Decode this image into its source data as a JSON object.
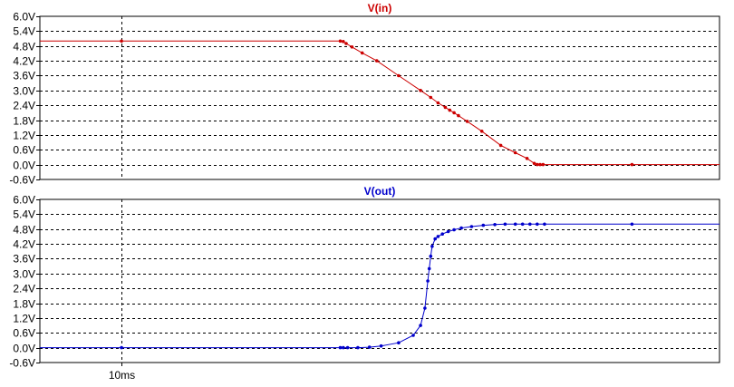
{
  "chart_data": [
    {
      "type": "line",
      "title": "V(in)",
      "color": "#cc0000",
      "xlabel": "",
      "ylabel": "",
      "x_unit": "ms",
      "xlim": [
        9.44,
        14.1
      ],
      "ylim": [
        -0.6,
        6.0
      ],
      "y_ticks": [
        -0.6,
        0.0,
        0.6,
        1.2,
        1.8,
        2.4,
        3.0,
        3.6,
        4.2,
        4.8,
        5.4,
        6.0
      ],
      "y_tick_labels": [
        "-0.6V",
        "0.0V",
        "0.6V",
        "1.2V",
        "1.8V",
        "2.4V",
        "3.0V",
        "3.6V",
        "4.2V",
        "4.8V",
        "5.4V",
        "6.0V"
      ],
      "grid": true,
      "series": [
        {
          "name": "V(in)",
          "x": [
            9.44,
            10.0,
            11.5,
            11.52,
            11.54,
            11.58,
            11.65,
            11.75,
            11.9,
            12.05,
            12.12,
            12.17,
            12.22,
            12.25,
            12.28,
            12.31,
            12.37,
            12.47,
            12.6,
            12.7,
            12.78,
            12.83,
            12.85,
            12.87,
            12.89,
            12.92,
            13.0,
            13.5,
            14.1
          ],
          "y": [
            5.0,
            5.0,
            5.0,
            4.98,
            4.9,
            4.76,
            4.52,
            4.2,
            3.6,
            3.0,
            2.72,
            2.5,
            2.32,
            2.2,
            2.1,
            1.98,
            1.75,
            1.35,
            0.78,
            0.48,
            0.25,
            0.05,
            0.0,
            0.0,
            0.0,
            0.0,
            0.0,
            0.0,
            0.0
          ],
          "markers": [
            10.0,
            11.5,
            11.52,
            11.54,
            11.58,
            11.65,
            11.75,
            11.9,
            12.05,
            12.12,
            12.17,
            12.22,
            12.25,
            12.28,
            12.31,
            12.37,
            12.47,
            12.6,
            12.7,
            12.78,
            12.83,
            12.85,
            12.87,
            12.89,
            13.5
          ]
        }
      ]
    },
    {
      "type": "line",
      "title": "V(out)",
      "color": "#0000cc",
      "xlabel": "",
      "ylabel": "",
      "x_unit": "ms",
      "xlim": [
        9.44,
        14.1
      ],
      "ylim": [
        -0.6,
        6.0
      ],
      "y_ticks": [
        -0.6,
        0.0,
        0.6,
        1.2,
        1.8,
        2.4,
        3.0,
        3.6,
        4.2,
        4.8,
        5.4,
        6.0
      ],
      "y_tick_labels": [
        "-0.6V",
        "0.0V",
        "0.6V",
        "1.2V",
        "1.8V",
        "2.4V",
        "3.0V",
        "3.6V",
        "4.2V",
        "4.8V",
        "5.4V",
        "6.0V"
      ],
      "x_ticks": [
        10.0
      ],
      "x_tick_labels": [
        "10ms"
      ],
      "grid": true,
      "series": [
        {
          "name": "V(out)",
          "x": [
            9.44,
            10.0,
            11.5,
            11.52,
            11.55,
            11.62,
            11.7,
            11.78,
            11.9,
            12.0,
            12.05,
            12.08,
            12.1,
            12.11,
            12.12,
            12.13,
            12.15,
            12.17,
            12.2,
            12.24,
            12.28,
            12.33,
            12.4,
            12.48,
            12.56,
            12.63,
            12.7,
            12.75,
            12.8,
            12.85,
            12.9,
            13.0,
            13.5,
            14.1
          ],
          "y": [
            0.0,
            0.0,
            0.0,
            0.0,
            0.0,
            0.0,
            0.02,
            0.07,
            0.2,
            0.5,
            0.9,
            1.6,
            2.7,
            3.2,
            3.7,
            4.1,
            4.4,
            4.5,
            4.6,
            4.7,
            4.77,
            4.84,
            4.9,
            4.95,
            4.98,
            5.0,
            5.0,
            5.0,
            5.0,
            5.0,
            5.0,
            5.0,
            5.0,
            5.0
          ],
          "markers": [
            10.0,
            11.5,
            11.52,
            11.55,
            11.62,
            11.7,
            11.78,
            11.9,
            12.0,
            12.05,
            12.08,
            12.1,
            12.11,
            12.12,
            12.13,
            12.15,
            12.17,
            12.2,
            12.24,
            12.28,
            12.33,
            12.4,
            12.48,
            12.56,
            12.63,
            12.7,
            12.75,
            12.8,
            12.85,
            12.9,
            13.5
          ]
        }
      ]
    }
  ]
}
